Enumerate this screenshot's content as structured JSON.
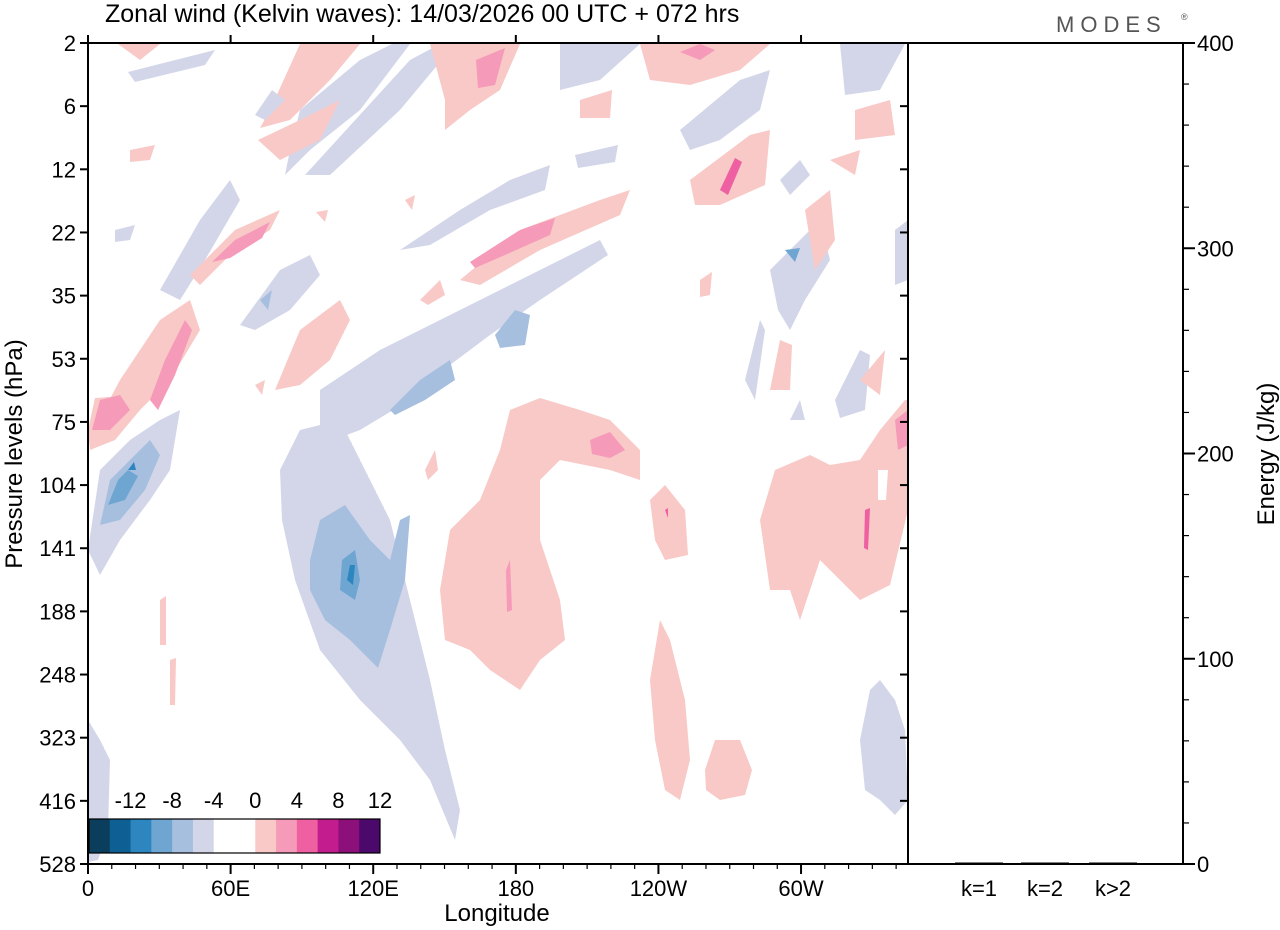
{
  "title": "Zonal wind (Kelvin waves):  14/03/2026  00 UTC  + 072 hrs",
  "brand": "MODES",
  "brand_mark": "®",
  "colors": {
    "neg": [
      "#0b3d5c",
      "#0d5f94",
      "#2d86c0",
      "#6fa6d1",
      "#a7bfdf",
      "#d3d6e9"
    ],
    "pos": [
      "#f8c9c6",
      "#f59ab8",
      "#ee60a2",
      "#c31c8e",
      "#8c0f7a",
      "#4b0a6b"
    ],
    "zero": "#ffffff",
    "axis": "#000000"
  },
  "chart_data": [
    {
      "type": "heatmap",
      "title": "Zonal wind (Kelvin waves):  14/03/2026  00 UTC  + 072 hrs",
      "xlabel": "Longitude",
      "ylabel": "Pressure levels (hPa)",
      "x_ticks": [
        "0",
        "60E",
        "120E",
        "180",
        "120W",
        "60W"
      ],
      "x_tick_values": [
        0,
        60,
        120,
        180,
        240,
        300
      ],
      "xlim": [
        0,
        345
      ],
      "y_ticks": [
        "2",
        "6",
        "12",
        "22",
        "35",
        "53",
        "75",
        "104",
        "141",
        "188",
        "248",
        "323",
        "416",
        "528"
      ],
      "y_scale": "log",
      "colorbar": {
        "labels": [
          "-12",
          "-8",
          "-4",
          "0",
          "4",
          "8",
          "12"
        ],
        "levels": [
          -14,
          -12,
          -10,
          -8,
          -6,
          -4,
          -2,
          0,
          2,
          4,
          6,
          8,
          10,
          12,
          14
        ]
      }
    },
    {
      "type": "bar",
      "ylabel": "Energy (J/kg)",
      "ylim": [
        0,
        400
      ],
      "y_ticks": [
        "0",
        "100",
        "200",
        "300",
        "400"
      ],
      "categories": [
        "k=1",
        "k=2",
        "k>2"
      ],
      "values": [
        0.3,
        0.2,
        0.4
      ]
    }
  ],
  "ui": {
    "x_label": "Longitude",
    "y_label": "Pressure levels (hPa)",
    "y2_label": "Energy (J/kg)"
  }
}
